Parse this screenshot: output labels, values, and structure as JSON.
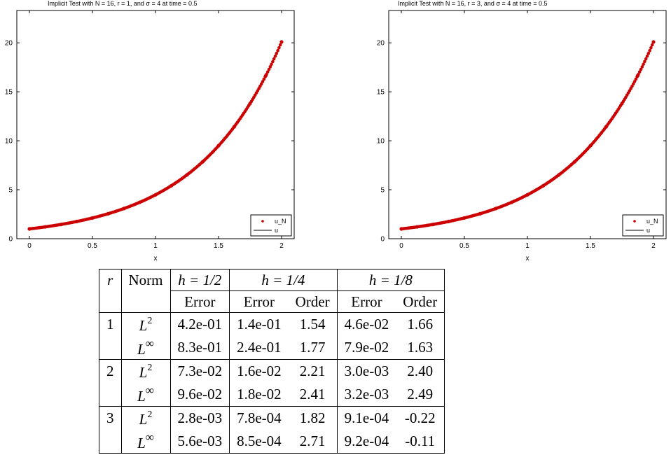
{
  "chart_data": [
    {
      "type": "line",
      "title": "Implicit Test with N = 16, r = 1, and σ = 4 at time = 0.5",
      "xlabel": "x",
      "ylabel": "",
      "xlim": [
        -0.1,
        2.1
      ],
      "ylim": [
        0,
        23.3
      ],
      "x_ticks": [
        "0",
        "0.5",
        "1",
        "1.5",
        "2"
      ],
      "y_ticks": [
        "0",
        "5",
        "10",
        "15",
        "20"
      ],
      "grid": false,
      "legend_position": "bottom-right",
      "curve": "u(x) = exp(1.5x)",
      "series": [
        {
          "name": "u_N",
          "marker": "dot",
          "color": "#cc0000",
          "x": [
            0,
            0.125,
            0.25,
            0.375,
            0.5,
            0.625,
            0.75,
            0.875,
            1.0,
            1.125,
            1.25,
            1.375,
            1.5,
            1.625,
            1.75,
            1.875,
            2.0
          ],
          "y": [
            1.0,
            1.21,
            1.45,
            1.76,
            2.12,
            2.55,
            3.08,
            3.72,
            4.48,
            5.4,
            6.52,
            7.86,
            9.49,
            11.44,
            13.8,
            16.65,
            20.09
          ]
        },
        {
          "name": "u",
          "marker": "line",
          "color": "#000000",
          "x": [
            0,
            0.25,
            0.5,
            0.75,
            1.0,
            1.25,
            1.5,
            1.75,
            2.0
          ],
          "y": [
            1.0,
            1.45,
            2.12,
            3.08,
            4.48,
            6.52,
            9.49,
            13.8,
            20.09
          ]
        }
      ]
    },
    {
      "type": "line",
      "title": "Implicit Test with N = 16, r = 3, and σ = 4 at time = 0.5",
      "xlabel": "x",
      "ylabel": "",
      "xlim": [
        -0.1,
        2.1
      ],
      "ylim": [
        0,
        23.3
      ],
      "x_ticks": [
        "0",
        "0.5",
        "1",
        "1.5",
        "2"
      ],
      "y_ticks": [
        "0",
        "5",
        "10",
        "15",
        "20"
      ],
      "grid": false,
      "legend_position": "bottom-right",
      "curve": "u(x) = exp(1.5x)",
      "series": [
        {
          "name": "u_N",
          "marker": "dot",
          "color": "#cc0000",
          "x": [
            0,
            0.125,
            0.25,
            0.375,
            0.5,
            0.625,
            0.75,
            0.875,
            1.0,
            1.125,
            1.25,
            1.375,
            1.5,
            1.625,
            1.75,
            1.875,
            2.0
          ],
          "y": [
            1.0,
            1.21,
            1.45,
            1.76,
            2.12,
            2.55,
            3.08,
            3.72,
            4.48,
            5.4,
            6.52,
            7.86,
            9.49,
            11.44,
            13.8,
            16.65,
            20.09
          ]
        },
        {
          "name": "u",
          "marker": "line",
          "color": "#000000",
          "x": [
            0,
            0.25,
            0.5,
            0.75,
            1.0,
            1.25,
            1.5,
            1.75,
            2.0
          ],
          "y": [
            1.0,
            1.45,
            2.12,
            3.08,
            4.48,
            6.52,
            9.49,
            13.8,
            20.09
          ]
        }
      ]
    }
  ],
  "table": {
    "head1": {
      "r": "r",
      "norm": "Norm",
      "h1": "h = 1/2",
      "h2": "h = 1/4",
      "h3": "h = 1/8"
    },
    "head2": {
      "e1": "Error",
      "e2": "Error",
      "o2": "Order",
      "e3": "Error",
      "o3": "Order"
    },
    "groups": [
      {
        "r": "1",
        "rows": [
          {
            "norm_base": "L",
            "norm_sup": "2",
            "e1": "4.2e-01",
            "e2": "1.4e-01",
            "o2": "1.54",
            "e3": "4.6e-02",
            "o3": "1.66"
          },
          {
            "norm_base": "L",
            "norm_sup": "∞",
            "e1": "8.3e-01",
            "e2": "2.4e-01",
            "o2": "1.77",
            "e3": "7.9e-02",
            "o3": "1.63"
          }
        ]
      },
      {
        "r": "2",
        "rows": [
          {
            "norm_base": "L",
            "norm_sup": "2",
            "e1": "7.3e-02",
            "e2": "1.6e-02",
            "o2": "2.21",
            "e3": "3.0e-03",
            "o3": "2.40"
          },
          {
            "norm_base": "L",
            "norm_sup": "∞",
            "e1": "9.6e-02",
            "e2": "1.8e-02",
            "o2": "2.41",
            "e3": "3.2e-03",
            "o3": "2.49"
          }
        ]
      },
      {
        "r": "3",
        "rows": [
          {
            "norm_base": "L",
            "norm_sup": "2",
            "e1": "2.8e-03",
            "e2": "7.8e-04",
            "o2": "1.82",
            "e3": "9.1e-04",
            "o3": "-0.22"
          },
          {
            "norm_base": "L",
            "norm_sup": "∞",
            "e1": "5.6e-03",
            "e2": "8.5e-04",
            "o2": "2.71",
            "e3": "9.2e-04",
            "o3": "-0.11"
          }
        ]
      }
    ]
  }
}
